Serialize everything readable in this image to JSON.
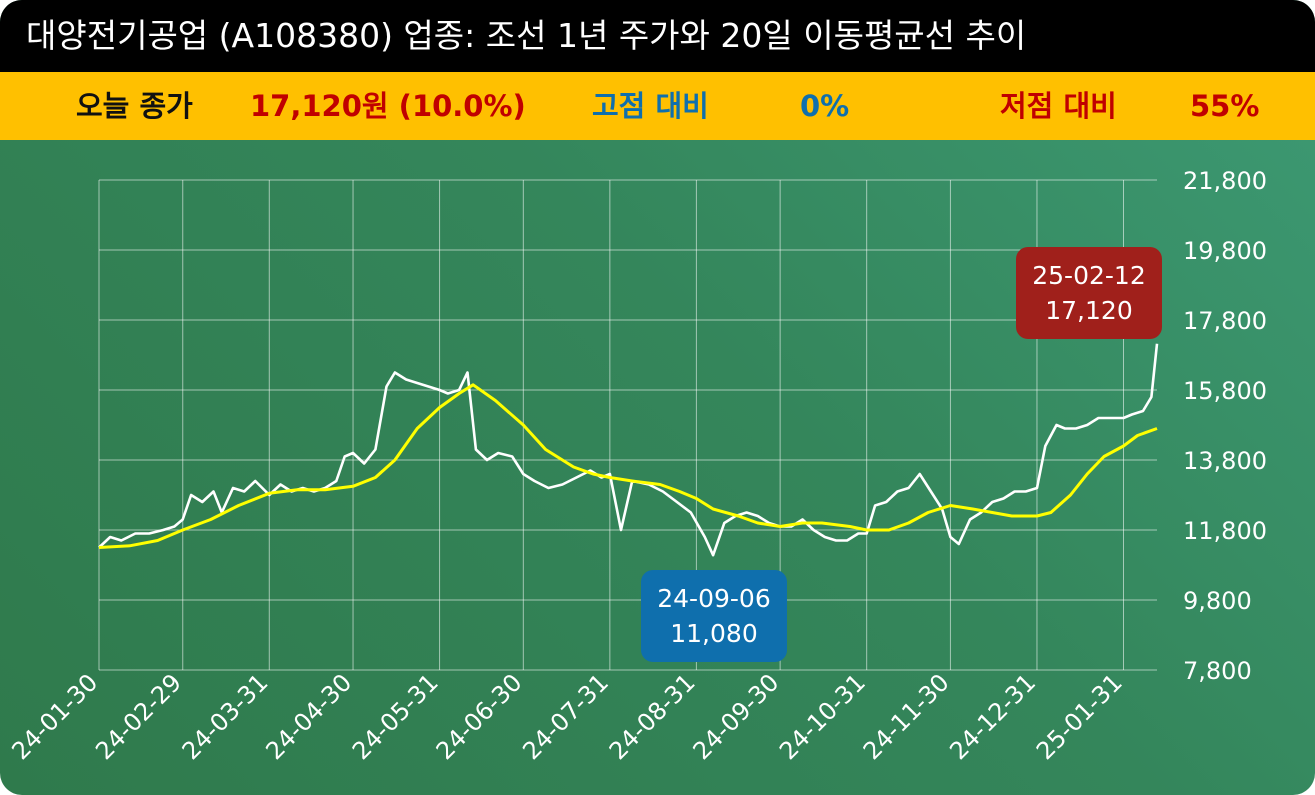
{
  "title": "대양전기공업 (A108380) 업종: 조선 1년 주가와 20일 이동평균선 추이",
  "stats": {
    "close_label": "오늘 종가",
    "close_value": "17,120원 (10.0%)",
    "high_label": "고점 대비",
    "high_value": "0%",
    "low_label": "저점 대비",
    "low_value": "55%"
  },
  "colors": {
    "title_bg": "#000000",
    "stats_bg": "#ffc000",
    "price_line": "#ffffff",
    "ma_line": "#ffff00",
    "high_callout": "#a0201b",
    "low_callout": "#0f6fad"
  },
  "chart_data": {
    "type": "line",
    "x_ticks": [
      "24-01-30",
      "24-02-29",
      "24-03-31",
      "24-04-30",
      "24-05-31",
      "24-06-30",
      "24-07-31",
      "24-08-31",
      "24-09-30",
      "24-10-31",
      "24-11-30",
      "24-12-31",
      "25-01-31"
    ],
    "y_ticks": [
      "21,800",
      "19,800",
      "17,800",
      "15,800",
      "13,800",
      "11,800",
      "9,800",
      "7,800"
    ],
    "ylim": [
      7800,
      21800
    ],
    "xlim": [
      "2024-01-30",
      "2025-02-12"
    ],
    "grid": true,
    "series": [
      {
        "name": "",
        "color": "#ffffff",
        "points": [
          [
            "2024-01-30",
            11300
          ],
          [
            "2024-02-03",
            11600
          ],
          [
            "2024-02-07",
            11500
          ],
          [
            "2024-02-12",
            11700
          ],
          [
            "2024-02-17",
            11700
          ],
          [
            "2024-02-22",
            11800
          ],
          [
            "2024-02-26",
            11900
          ],
          [
            "2024-02-29",
            12100
          ],
          [
            "2024-03-03",
            12800
          ],
          [
            "2024-03-07",
            12600
          ],
          [
            "2024-03-11",
            12900
          ],
          [
            "2024-03-14",
            12300
          ],
          [
            "2024-03-18",
            13000
          ],
          [
            "2024-03-22",
            12900
          ],
          [
            "2024-03-26",
            13200
          ],
          [
            "2024-03-31",
            12800
          ],
          [
            "2024-04-04",
            13100
          ],
          [
            "2024-04-08",
            12900
          ],
          [
            "2024-04-12",
            13000
          ],
          [
            "2024-04-16",
            12900
          ],
          [
            "2024-04-20",
            13000
          ],
          [
            "2024-04-24",
            13200
          ],
          [
            "2024-04-27",
            13900
          ],
          [
            "2024-04-30",
            14000
          ],
          [
            "2024-05-04",
            13700
          ],
          [
            "2024-05-08",
            14100
          ],
          [
            "2024-05-12",
            15900
          ],
          [
            "2024-05-15",
            16300
          ],
          [
            "2024-05-19",
            16100
          ],
          [
            "2024-05-23",
            16000
          ],
          [
            "2024-05-27",
            15900
          ],
          [
            "2024-05-31",
            15800
          ],
          [
            "2024-06-03",
            15700
          ],
          [
            "2024-06-07",
            15800
          ],
          [
            "2024-06-10",
            16300
          ],
          [
            "2024-06-13",
            14100
          ],
          [
            "2024-06-17",
            13800
          ],
          [
            "2024-06-21",
            14000
          ],
          [
            "2024-06-26",
            13900
          ],
          [
            "2024-06-30",
            13400
          ],
          [
            "2024-07-04",
            13200
          ],
          [
            "2024-07-09",
            13000
          ],
          [
            "2024-07-14",
            13100
          ],
          [
            "2024-07-19",
            13300
          ],
          [
            "2024-07-24",
            13500
          ],
          [
            "2024-07-28",
            13300
          ],
          [
            "2024-07-31",
            13400
          ],
          [
            "2024-08-04",
            11800
          ],
          [
            "2024-08-08",
            13200
          ],
          [
            "2024-08-14",
            13100
          ],
          [
            "2024-08-19",
            12900
          ],
          [
            "2024-08-24",
            12600
          ],
          [
            "2024-08-29",
            12300
          ],
          [
            "2024-09-03",
            11600
          ],
          [
            "2024-09-06",
            11080
          ],
          [
            "2024-09-10",
            12000
          ],
          [
            "2024-09-14",
            12200
          ],
          [
            "2024-09-18",
            12300
          ],
          [
            "2024-09-22",
            12200
          ],
          [
            "2024-09-26",
            12000
          ],
          [
            "2024-09-30",
            11900
          ],
          [
            "2024-10-04",
            11900
          ],
          [
            "2024-10-08",
            12100
          ],
          [
            "2024-10-12",
            11800
          ],
          [
            "2024-10-16",
            11600
          ],
          [
            "2024-10-20",
            11500
          ],
          [
            "2024-10-24",
            11500
          ],
          [
            "2024-10-28",
            11700
          ],
          [
            "2024-10-31",
            11700
          ],
          [
            "2024-11-03",
            12500
          ],
          [
            "2024-11-07",
            12600
          ],
          [
            "2024-11-11",
            12900
          ],
          [
            "2024-11-15",
            13000
          ],
          [
            "2024-11-19",
            13400
          ],
          [
            "2024-11-23",
            12900
          ],
          [
            "2024-11-27",
            12400
          ],
          [
            "2024-11-30",
            11600
          ],
          [
            "2024-12-03",
            11400
          ],
          [
            "2024-12-07",
            12100
          ],
          [
            "2024-12-11",
            12300
          ],
          [
            "2024-12-15",
            12600
          ],
          [
            "2024-12-19",
            12700
          ],
          [
            "2024-12-23",
            12900
          ],
          [
            "2024-12-27",
            12900
          ],
          [
            "2024-12-31",
            13000
          ],
          [
            "2025-01-03",
            14200
          ],
          [
            "2025-01-07",
            14800
          ],
          [
            "2025-01-10",
            14700
          ],
          [
            "2025-01-14",
            14700
          ],
          [
            "2025-01-18",
            14800
          ],
          [
            "2025-01-22",
            15000
          ],
          [
            "2025-01-26",
            15000
          ],
          [
            "2025-01-31",
            15000
          ],
          [
            "2025-02-03",
            15100
          ],
          [
            "2025-02-07",
            15200
          ],
          [
            "2025-02-10",
            15600
          ],
          [
            "2025-02-12",
            17120
          ]
        ]
      },
      {
        "name": "",
        "color": "#ffff00",
        "points": [
          [
            "2024-01-30",
            11300
          ],
          [
            "2024-02-10",
            11350
          ],
          [
            "2024-02-20",
            11500
          ],
          [
            "2024-02-29",
            11800
          ],
          [
            "2024-03-10",
            12100
          ],
          [
            "2024-03-20",
            12500
          ],
          [
            "2024-03-31",
            12850
          ],
          [
            "2024-04-10",
            12950
          ],
          [
            "2024-04-20",
            12950
          ],
          [
            "2024-04-30",
            13050
          ],
          [
            "2024-05-08",
            13300
          ],
          [
            "2024-05-15",
            13800
          ],
          [
            "2024-05-23",
            14700
          ],
          [
            "2024-05-31",
            15300
          ],
          [
            "2024-06-07",
            15700
          ],
          [
            "2024-06-12",
            15950
          ],
          [
            "2024-06-20",
            15500
          ],
          [
            "2024-06-30",
            14800
          ],
          [
            "2024-07-08",
            14100
          ],
          [
            "2024-07-18",
            13600
          ],
          [
            "2024-07-25",
            13400
          ],
          [
            "2024-07-31",
            13300
          ],
          [
            "2024-08-08",
            13200
          ],
          [
            "2024-08-18",
            13100
          ],
          [
            "2024-08-25",
            12900
          ],
          [
            "2024-08-31",
            12700
          ],
          [
            "2024-09-06",
            12400
          ],
          [
            "2024-09-15",
            12200
          ],
          [
            "2024-09-22",
            12000
          ],
          [
            "2024-09-30",
            11900
          ],
          [
            "2024-10-08",
            12000
          ],
          [
            "2024-10-15",
            12000
          ],
          [
            "2024-10-25",
            11900
          ],
          [
            "2024-10-31",
            11800
          ],
          [
            "2024-11-08",
            11800
          ],
          [
            "2024-11-15",
            12000
          ],
          [
            "2024-11-22",
            12300
          ],
          [
            "2024-11-30",
            12500
          ],
          [
            "2024-12-08",
            12400
          ],
          [
            "2024-12-15",
            12300
          ],
          [
            "2024-12-22",
            12200
          ],
          [
            "2024-12-31",
            12200
          ],
          [
            "2025-01-05",
            12300
          ],
          [
            "2025-01-12",
            12800
          ],
          [
            "2025-01-18",
            13400
          ],
          [
            "2025-01-24",
            13900
          ],
          [
            "2025-01-31",
            14200
          ],
          [
            "2025-02-05",
            14500
          ],
          [
            "2025-02-12",
            14700
          ]
        ]
      }
    ],
    "annotations": [
      {
        "label": "25-02-12",
        "value": "17,120",
        "date": "2025-02-12",
        "y": 17120,
        "kind": "high"
      },
      {
        "label": "24-09-06",
        "value": "11,080",
        "date": "2024-09-06",
        "y": 11080,
        "kind": "low"
      }
    ]
  }
}
